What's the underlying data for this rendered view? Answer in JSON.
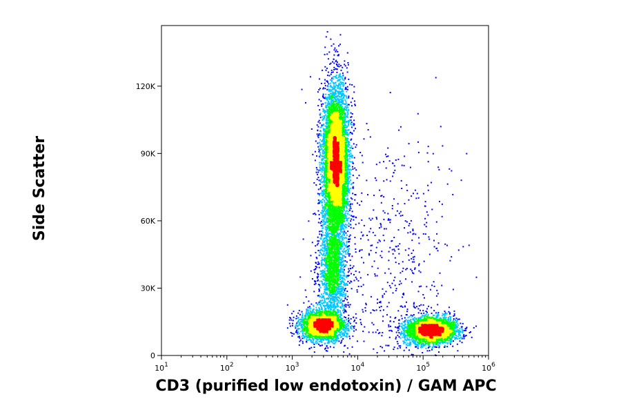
{
  "chart_data": {
    "type": "scatter",
    "style": "flow cytometry density dot plot (pseudocolor)",
    "xlabel": "CD3 (purified low endotoxin) / GAM APC",
    "ylabel": "Side Scatter",
    "x_scale": "log",
    "xlim": [
      10,
      1000000
    ],
    "ylim": [
      0,
      147000
    ],
    "x_ticks": [
      {
        "value": 10,
        "base": "10",
        "exp": "1"
      },
      {
        "value": 100,
        "base": "10",
        "exp": "2"
      },
      {
        "value": 1000,
        "base": "10",
        "exp": "3"
      },
      {
        "value": 10000,
        "base": "10",
        "exp": "4"
      },
      {
        "value": 100000,
        "base": "10",
        "exp": "5"
      },
      {
        "value": 1000000,
        "base": "10",
        "exp": "6"
      }
    ],
    "y_ticks": [
      {
        "value": 0,
        "label": "0"
      },
      {
        "value": 30000,
        "label": "30K"
      },
      {
        "value": 60000,
        "label": "60K"
      },
      {
        "value": 90000,
        "label": "90K"
      },
      {
        "value": 120000,
        "label": "120K"
      }
    ],
    "density_colors": [
      "#0000ff",
      "#00c8ff",
      "#00ff00",
      "#ffff00",
      "#ff0000"
    ],
    "populations": [
      {
        "x_center": 4500,
        "x_log_sd": 0.1,
        "y_center": 87000,
        "y_sd": 17000,
        "weight": 0.46
      },
      {
        "x_center": 4000,
        "x_log_sd": 0.11,
        "y_center": 38000,
        "y_sd": 12000,
        "weight": 0.12
      },
      {
        "x_center": 2800,
        "x_log_sd": 0.17,
        "y_center": 13500,
        "y_sd": 3300,
        "weight": 0.18
      },
      {
        "x_center": 130000,
        "x_log_sd": 0.2,
        "y_center": 11500,
        "y_sd": 3000,
        "weight": 0.2
      },
      {
        "x_center": 30000,
        "x_log_sd": 0.5,
        "y_center": 40000,
        "y_sd": 30000,
        "weight": 0.04
      }
    ],
    "grid": false,
    "legend": "none"
  }
}
